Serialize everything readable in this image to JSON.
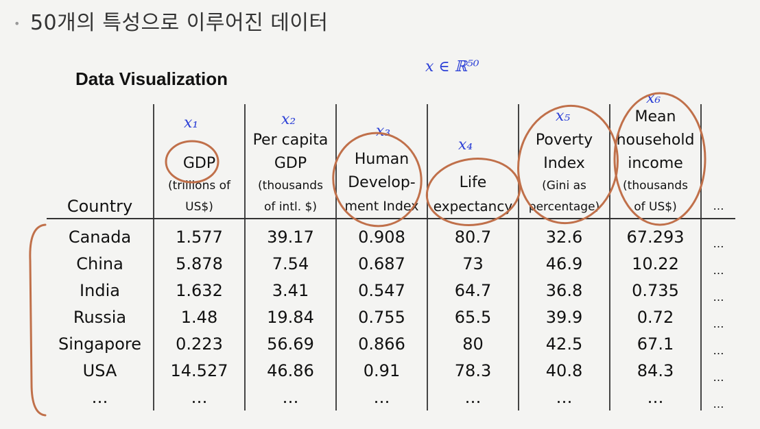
{
  "slide": {
    "bullet": "•",
    "header": "50개의 특성으로 이루어진 데이터",
    "section_title": "Data Visualization"
  },
  "table": {
    "country_header": "Country",
    "columns": [
      {
        "main": "GDP",
        "unit": "(trillions of US$)",
        "unit1": "(trillions of",
        "unit2": "US$)"
      },
      {
        "main": "Per capita GDP",
        "main1": "Per capita",
        "main2": "GDP",
        "unit": "(thousands of intl. $)",
        "unit1": "(thousands",
        "unit2": "of intl. $)"
      },
      {
        "main": "Human Develop- ment Index",
        "main1": "Human",
        "main2": "Develop-",
        "main3": "ment Index"
      },
      {
        "main": "Life expectancy",
        "main1": "Life",
        "main2": "expectancy"
      },
      {
        "main": "Poverty Index",
        "main1": "Poverty",
        "main2": "Index",
        "unit": "(Gini as percentage)",
        "unit1": "(Gini as",
        "unit2": "percentage)"
      },
      {
        "main": "Mean household income",
        "main1": "Mean",
        "main2": "household",
        "main3": "income",
        "unit": "(thousands of US$)",
        "unit1": "(thousands",
        "unit2": "of US$)"
      }
    ],
    "ellipsis": "…",
    "rows": [
      {
        "country": "Canada",
        "values": [
          "1.577",
          "39.17",
          "0.908",
          "80.7",
          "32.6",
          "67.293"
        ]
      },
      {
        "country": "China",
        "values": [
          "5.878",
          "7.54",
          "0.687",
          "73",
          "46.9",
          "10.22"
        ]
      },
      {
        "country": "India",
        "values": [
          "1.632",
          "3.41",
          "0.547",
          "64.7",
          "36.8",
          "0.735"
        ]
      },
      {
        "country": "Russia",
        "values": [
          "1.48",
          "19.84",
          "0.755",
          "65.5",
          "39.9",
          "0.72"
        ]
      },
      {
        "country": "Singapore",
        "values": [
          "0.223",
          "56.69",
          "0.866",
          "80",
          "42.5",
          "67.1"
        ]
      },
      {
        "country": "USA",
        "values": [
          "14.527",
          "46.86",
          "0.91",
          "78.3",
          "40.8",
          "84.3"
        ]
      },
      {
        "country": "…",
        "values": [
          "…",
          "…",
          "…",
          "…",
          "…",
          "…"
        ]
      }
    ]
  },
  "annotations": {
    "ink_blue": "#2b3fd6",
    "ink_orange": "#c0704a",
    "feature_space": "x ∈ ℝ⁵⁰",
    "feature_labels": [
      "x₁",
      "x₂",
      "x₃",
      "x₄",
      "x₅",
      "x₆"
    ]
  }
}
